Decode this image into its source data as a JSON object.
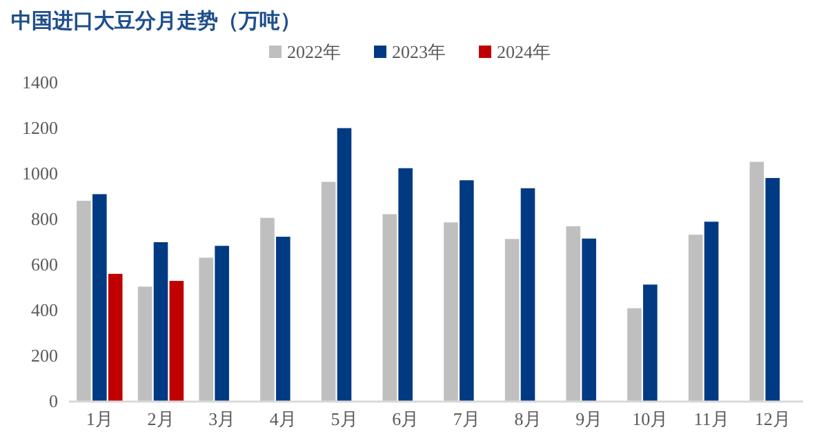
{
  "chart_data": {
    "type": "bar",
    "title": "中国进口大豆分月走势（万吨）",
    "categories": [
      "1月",
      "2月",
      "3月",
      "4月",
      "5月",
      "6月",
      "7月",
      "8月",
      "9月",
      "10月",
      "11月",
      "12月"
    ],
    "series": [
      {
        "name": "2022年",
        "color": "#bfbfbf",
        "values": [
          882,
          505,
          632,
          807,
          965,
          823,
          787,
          714,
          770,
          410,
          733,
          1053
        ]
      },
      {
        "name": "2023年",
        "color": "#003a83",
        "values": [
          911,
          700,
          684,
          724,
          1201,
          1025,
          972,
          937,
          716,
          514,
          790,
          982
        ]
      },
      {
        "name": "2024年",
        "color": "#c00000",
        "values": [
          561,
          530,
          null,
          null,
          null,
          null,
          null,
          null,
          null,
          null,
          null,
          null
        ]
      }
    ],
    "ylim": [
      0,
      1400
    ],
    "yticks": [
      0,
      200,
      400,
      600,
      800,
      1000,
      1200,
      1400
    ],
    "grid": false,
    "legend": "top"
  }
}
